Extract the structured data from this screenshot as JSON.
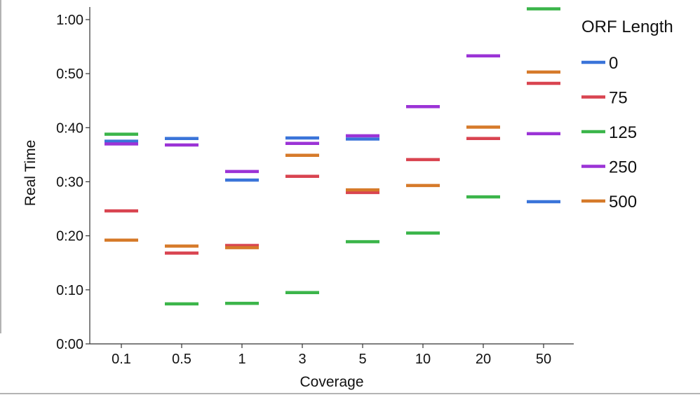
{
  "chart_data": {
    "type": "scatter",
    "marker": "horizontal-dash",
    "xlabel": "Coverage",
    "ylabel": "Real Time",
    "categories": [
      "0.1",
      "0.5",
      "1",
      "3",
      "5",
      "10",
      "20",
      "50"
    ],
    "y_unit": "seconds",
    "ylim": [
      0,
      62
    ],
    "yticks": [
      0,
      10,
      20,
      30,
      40,
      50,
      60
    ],
    "ytick_labels": [
      "0:00",
      "0:10",
      "0:20",
      "0:30",
      "0:40",
      "0:50",
      "1:00"
    ],
    "grid": false,
    "legend": {
      "title": "ORF Length",
      "position": "right"
    },
    "series": [
      {
        "name": "0",
        "color": "#3a74d9",
        "values": [
          37.5,
          38.0,
          30.3,
          38.1,
          37.9,
          null,
          null,
          26.3
        ]
      },
      {
        "name": "75",
        "color": "#d94450",
        "values": [
          24.6,
          16.8,
          18.2,
          31.0,
          28.0,
          34.1,
          38.0,
          48.2
        ]
      },
      {
        "name": "125",
        "color": "#3bb54a",
        "values": [
          38.8,
          7.4,
          7.5,
          9.5,
          18.9,
          20.5,
          27.2,
          62.0
        ]
      },
      {
        "name": "250",
        "color": "#9b33d6",
        "values": [
          37.0,
          36.8,
          31.9,
          37.1,
          38.5,
          43.9,
          53.3,
          38.9
        ]
      },
      {
        "name": "500",
        "color": "#d67a2a",
        "values": [
          19.2,
          18.1,
          17.8,
          34.9,
          28.5,
          29.3,
          40.1,
          50.3
        ]
      }
    ]
  }
}
